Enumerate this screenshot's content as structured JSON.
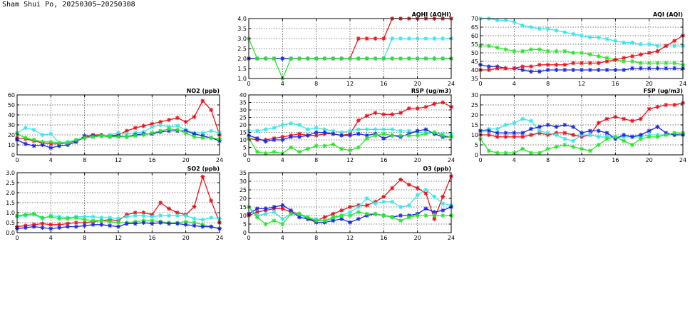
{
  "title": "Sham Shui Po, 20250305–20250308",
  "colors": {
    "red": "#e8141c",
    "cyan": "#38e6e8",
    "blue": "#1c28e6",
    "green": "#28e628"
  },
  "chart_data": [
    {
      "id": "aqhi",
      "type": "line",
      "title": "AQHI (AQHI)",
      "xlim": [
        0,
        24
      ],
      "xticks": [
        0,
        4,
        8,
        12,
        16,
        20,
        24
      ],
      "ylim": [
        1.0,
        4.0
      ],
      "yticks": [
        "1.0",
        "1.5",
        "2.0",
        "2.5",
        "3.0",
        "3.5",
        "4.0"
      ],
      "grid": true,
      "series": [
        {
          "color": "red",
          "values": [
            2,
            2,
            2,
            2,
            2,
            2,
            2,
            2,
            2,
            2,
            2,
            2,
            2,
            3,
            3,
            3,
            3,
            4,
            4,
            4,
            4,
            4,
            4,
            4,
            4
          ]
        },
        {
          "color": "cyan",
          "values": [
            2,
            2,
            2,
            2,
            2,
            2,
            2,
            2,
            2,
            2,
            2,
            2,
            2,
            2,
            2,
            2,
            2,
            3,
            3,
            3,
            3,
            3,
            3,
            3,
            3
          ]
        },
        {
          "color": "blue",
          "values": [
            2,
            2,
            2,
            2,
            2,
            2,
            2,
            2,
            2,
            2,
            2,
            2,
            2,
            2,
            2,
            2,
            2,
            2,
            2,
            2,
            2,
            2,
            2,
            2,
            2
          ]
        },
        {
          "color": "green",
          "values": [
            3,
            2,
            2,
            2,
            1,
            2,
            2,
            2,
            2,
            2,
            2,
            2,
            2,
            2,
            2,
            2,
            2,
            2,
            2,
            2,
            2,
            2,
            2,
            2,
            2
          ]
        }
      ]
    },
    {
      "id": "aqi",
      "type": "line",
      "title": "AQI (AQI)",
      "xlim": [
        0,
        24
      ],
      "xticks": [
        0,
        4,
        8,
        12,
        16,
        20,
        24
      ],
      "ylim": [
        35,
        70
      ],
      "yticks": [
        "35",
        "40",
        "45",
        "50",
        "55",
        "60",
        "65",
        "70"
      ],
      "grid": true,
      "series": [
        {
          "color": "cyan",
          "values": [
            70,
            70,
            69,
            69,
            68,
            66,
            65,
            64,
            64,
            63,
            62,
            61,
            60,
            59,
            59,
            58,
            57,
            56,
            56,
            55,
            55,
            54,
            54,
            54,
            54
          ]
        },
        {
          "color": "green",
          "values": [
            54,
            54,
            53,
            52,
            51,
            51,
            52,
            52,
            51,
            51,
            51,
            50,
            50,
            49,
            48,
            47,
            46,
            45,
            45,
            44,
            44,
            44,
            44,
            44,
            43
          ]
        },
        {
          "color": "blue",
          "values": [
            43,
            42,
            42,
            41,
            41,
            40,
            39,
            39,
            40,
            40,
            40,
            40,
            40,
            40,
            40,
            40,
            40,
            40,
            41,
            41,
            41,
            41,
            41,
            41,
            41
          ]
        },
        {
          "color": "red",
          "values": [
            40,
            40,
            41,
            41,
            41,
            42,
            42,
            43,
            43,
            43,
            43,
            44,
            44,
            44,
            44,
            45,
            46,
            47,
            48,
            49,
            50,
            51,
            54,
            57,
            60
          ]
        }
      ]
    },
    {
      "id": "no2",
      "type": "line",
      "title": "NO2 (ppb)",
      "xlim": [
        0,
        24
      ],
      "xticks": [
        0,
        4,
        8,
        12,
        16,
        20,
        24
      ],
      "ylim": [
        0,
        60
      ],
      "yticks": [
        "0",
        "10",
        "20",
        "30",
        "40",
        "50",
        "60"
      ],
      "grid": true,
      "series": [
        {
          "color": "red",
          "values": [
            17,
            16,
            14,
            12,
            11,
            11,
            12,
            14,
            17,
            20,
            20,
            19,
            20,
            24,
            27,
            29,
            31,
            33,
            35,
            37,
            33,
            38,
            54,
            45,
            20
          ]
        },
        {
          "color": "cyan",
          "values": [
            22,
            27,
            25,
            20,
            21,
            12,
            13,
            15,
            17,
            18,
            19,
            20,
            22,
            21,
            22,
            23,
            28,
            30,
            28,
            29,
            25,
            22,
            22,
            24,
            22
          ]
        },
        {
          "color": "blue",
          "values": [
            15,
            11,
            9,
            10,
            7,
            9,
            10,
            13,
            19,
            19,
            19,
            18,
            19,
            18,
            20,
            21,
            21,
            23,
            24,
            24,
            24,
            21,
            19,
            17,
            14
          ]
        },
        {
          "color": "green",
          "values": [
            21,
            17,
            15,
            13,
            13,
            12,
            12,
            15,
            17,
            18,
            19,
            18,
            18,
            18,
            19,
            20,
            22,
            24,
            26,
            25,
            22,
            18,
            17,
            17,
            16
          ]
        }
      ]
    },
    {
      "id": "rsp",
      "type": "line",
      "title": "RSP (ug/m3)",
      "xlim": [
        0,
        24
      ],
      "xticks": [
        0,
        4,
        8,
        12,
        16,
        20,
        24
      ],
      "ylim": [
        0,
        40
      ],
      "yticks": [
        "0",
        "5",
        "10",
        "15",
        "20",
        "25",
        "30",
        "35",
        "40"
      ],
      "grid": true,
      "series": [
        {
          "color": "red",
          "values": [
            11,
            10,
            10,
            11,
            12,
            13,
            14,
            13,
            13,
            14,
            14,
            13,
            14,
            23,
            26,
            28,
            27,
            27,
            28,
            31,
            31,
            32,
            34,
            35,
            32
          ]
        },
        {
          "color": "cyan",
          "values": [
            16,
            16,
            17,
            18,
            20,
            21,
            20,
            17,
            18,
            17,
            16,
            15,
            16,
            17,
            17,
            17,
            17,
            17,
            16,
            16,
            15,
            15,
            15,
            14,
            14
          ]
        },
        {
          "color": "blue",
          "values": [
            13,
            11,
            9,
            10,
            10,
            12,
            12,
            13,
            15,
            15,
            14,
            13,
            13,
            14,
            13,
            14,
            11,
            13,
            12,
            14,
            16,
            17,
            14,
            12,
            12
          ]
        },
        {
          "color": "green",
          "values": [
            11,
            2,
            1,
            2,
            1,
            5,
            2,
            4,
            6,
            6,
            7,
            4,
            3,
            5,
            11,
            13,
            14,
            13,
            13,
            13,
            13,
            14,
            15,
            13,
            12
          ]
        }
      ]
    },
    {
      "id": "fsp",
      "type": "line",
      "title": "FSP (ug/m3)",
      "xlim": [
        0,
        24
      ],
      "xticks": [
        0,
        4,
        8,
        12,
        16,
        20,
        24
      ],
      "ylim": [
        0,
        30
      ],
      "yticks": [
        "0",
        "5",
        "10",
        "15",
        "20",
        "25",
        "30"
      ],
      "grid": true,
      "series": [
        {
          "color": "red",
          "values": [
            10,
            10,
            9,
            9,
            9,
            9,
            10,
            11,
            10,
            11,
            11,
            10,
            9,
            10,
            16,
            18,
            19,
            18,
            17,
            18,
            23,
            24,
            25,
            25,
            26
          ]
        },
        {
          "color": "cyan",
          "values": [
            12,
            13,
            13,
            15,
            16,
            18,
            17,
            12,
            11,
            10,
            8,
            7,
            10,
            10,
            9,
            9,
            9,
            9,
            9,
            9,
            10,
            10,
            10,
            10,
            11
          ]
        },
        {
          "color": "blue",
          "values": [
            12,
            12,
            11,
            11,
            11,
            11,
            13,
            14,
            15,
            14,
            15,
            14,
            11,
            12,
            12,
            11,
            8,
            10,
            9,
            10,
            12,
            14,
            11,
            10,
            10
          ]
        },
        {
          "color": "green",
          "values": [
            8,
            2,
            1,
            1,
            1,
            3,
            1,
            1,
            3,
            4,
            5,
            4,
            3,
            2,
            5,
            8,
            9,
            7,
            5,
            8,
            9,
            9,
            10,
            11,
            11
          ]
        }
      ]
    },
    {
      "id": "so2",
      "type": "line",
      "title": "SO2 (ppb)",
      "xlim": [
        0,
        24
      ],
      "xticks": [
        0,
        4,
        8,
        12,
        16,
        20,
        24
      ],
      "ylim": [
        0,
        3.0
      ],
      "yticks": [
        "0.0",
        "0.5",
        "1.0",
        "1.5",
        "2.0",
        "2.5",
        "3.0"
      ],
      "grid": true,
      "series": [
        {
          "color": "red",
          "values": [
            0.3,
            0.35,
            0.4,
            0.45,
            0.4,
            0.4,
            0.45,
            0.5,
            0.5,
            0.55,
            0.6,
            0.65,
            0.6,
            0.9,
            1.0,
            1.0,
            0.9,
            1.5,
            1.2,
            1.0,
            0.9,
            1.3,
            2.8,
            1.6,
            0.5
          ]
        },
        {
          "color": "cyan",
          "values": [
            0.8,
            0.85,
            0.9,
            0.7,
            0.85,
            0.8,
            0.75,
            0.8,
            0.8,
            0.8,
            0.75,
            0.75,
            0.7,
            0.8,
            0.85,
            0.85,
            0.8,
            0.85,
            0.85,
            0.85,
            0.85,
            0.7,
            0.65,
            0.75,
            0.7
          ]
        },
        {
          "color": "green",
          "values": [
            0.85,
            0.9,
            0.95,
            0.75,
            0.8,
            0.7,
            0.7,
            0.75,
            0.65,
            0.6,
            0.6,
            0.55,
            0.5,
            0.5,
            0.55,
            0.6,
            0.6,
            0.55,
            0.5,
            0.5,
            0.55,
            0.5,
            0.4,
            0.3,
            0.2
          ]
        },
        {
          "color": "blue",
          "values": [
            0.2,
            0.25,
            0.3,
            0.25,
            0.2,
            0.25,
            0.3,
            0.3,
            0.35,
            0.4,
            0.4,
            0.35,
            0.3,
            0.45,
            0.45,
            0.5,
            0.45,
            0.5,
            0.45,
            0.45,
            0.4,
            0.35,
            0.3,
            0.3,
            0.2
          ]
        }
      ]
    },
    {
      "id": "o3",
      "type": "line",
      "title": "O3 (ppb)",
      "xlim": [
        0,
        24
      ],
      "xticks": [
        0,
        4,
        8,
        12,
        16,
        20,
        24
      ],
      "ylim": [
        0,
        35
      ],
      "yticks": [
        "0",
        "5",
        "10",
        "15",
        "20",
        "25",
        "30",
        "35"
      ],
      "grid": true,
      "series": [
        {
          "color": "red",
          "values": [
            10,
            12,
            13,
            14,
            14,
            12,
            11,
            8,
            7,
            9,
            11,
            13,
            15,
            16,
            16,
            18,
            21,
            26,
            31,
            28,
            26,
            23,
            8,
            21,
            33
          ]
        },
        {
          "color": "cyan",
          "values": [
            15,
            10,
            11,
            12,
            8,
            11,
            10,
            9,
            8,
            7,
            8,
            10,
            12,
            15,
            20,
            17,
            18,
            18,
            15,
            16,
            22,
            25,
            21,
            17,
            16
          ]
        },
        {
          "color": "blue",
          "values": [
            11,
            14,
            14,
            15,
            16,
            13,
            9,
            8,
            6,
            6,
            7,
            8,
            6,
            8,
            10,
            11,
            10,
            9,
            10,
            10,
            11,
            14,
            12,
            13,
            15
          ]
        },
        {
          "color": "green",
          "values": [
            15,
            9,
            5,
            7,
            5,
            11,
            11,
            9,
            7,
            7,
            9,
            10,
            10,
            12,
            11,
            11,
            10,
            9,
            7,
            9,
            10,
            10,
            10,
            10,
            10
          ]
        }
      ]
    }
  ]
}
